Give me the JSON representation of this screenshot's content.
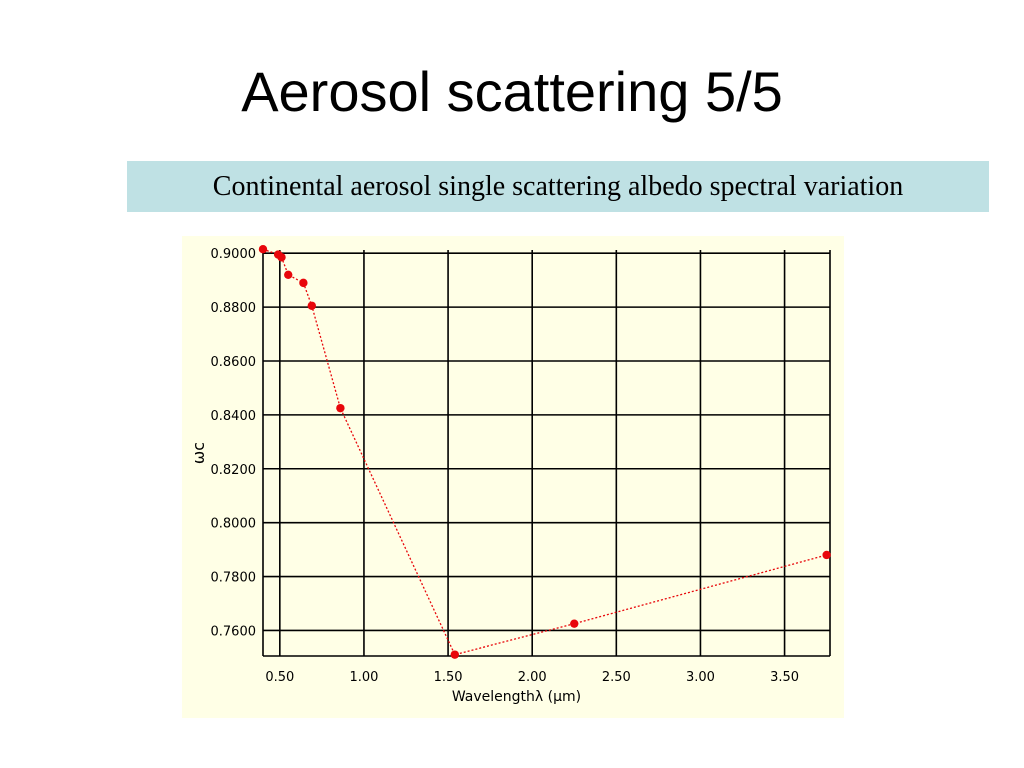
{
  "slide": {
    "title": "Aerosol scattering 5/5",
    "caption": "Continental aerosol single scattering albedo spectral variation"
  },
  "colors": {
    "panel_bg": "#ffffe6",
    "caption_bg": "#bfe1e4",
    "grid": "#000000",
    "series": "#e8070b"
  },
  "chart_data": {
    "type": "line",
    "title": "",
    "xlabel": "Wavelengthλ (µm)",
    "ylabel": "ωc",
    "xlim": [
      0.4,
      3.77
    ],
    "ylim": [
      0.7505,
      0.9012
    ],
    "x_ticks": [
      0.5,
      1.0,
      1.5,
      2.0,
      2.5,
      3.0,
      3.5
    ],
    "x_tick_labels": [
      "0.50",
      "1.00",
      "1.50",
      "2.00",
      "2.50",
      "3.00",
      "3.50"
    ],
    "y_ticks": [
      0.76,
      0.78,
      0.8,
      0.82,
      0.84,
      0.86,
      0.88,
      0.9
    ],
    "y_tick_labels": [
      "0.7600",
      "0.7800",
      "0.8000",
      "0.8200",
      "0.8400",
      "0.8600",
      "0.8800",
      "0.9000"
    ],
    "extra_vertical_lines": [
      0.4,
      3.77
    ],
    "grid": true,
    "legend": "none",
    "series": [
      {
        "line_style": "dotted",
        "points": [
          {
            "x": 0.4,
            "y": 0.9015
          },
          {
            "x": 0.49,
            "y": 0.8995
          },
          {
            "x": 0.51,
            "y": 0.8985
          },
          {
            "x": 0.55,
            "y": 0.892
          },
          {
            "x": 0.64,
            "y": 0.889
          },
          {
            "x": 0.69,
            "y": 0.8805
          },
          {
            "x": 0.86,
            "y": 0.8425
          },
          {
            "x": 1.54,
            "y": 0.751
          },
          {
            "x": 2.25,
            "y": 0.7625
          },
          {
            "x": 3.75,
            "y": 0.788
          }
        ]
      }
    ]
  }
}
